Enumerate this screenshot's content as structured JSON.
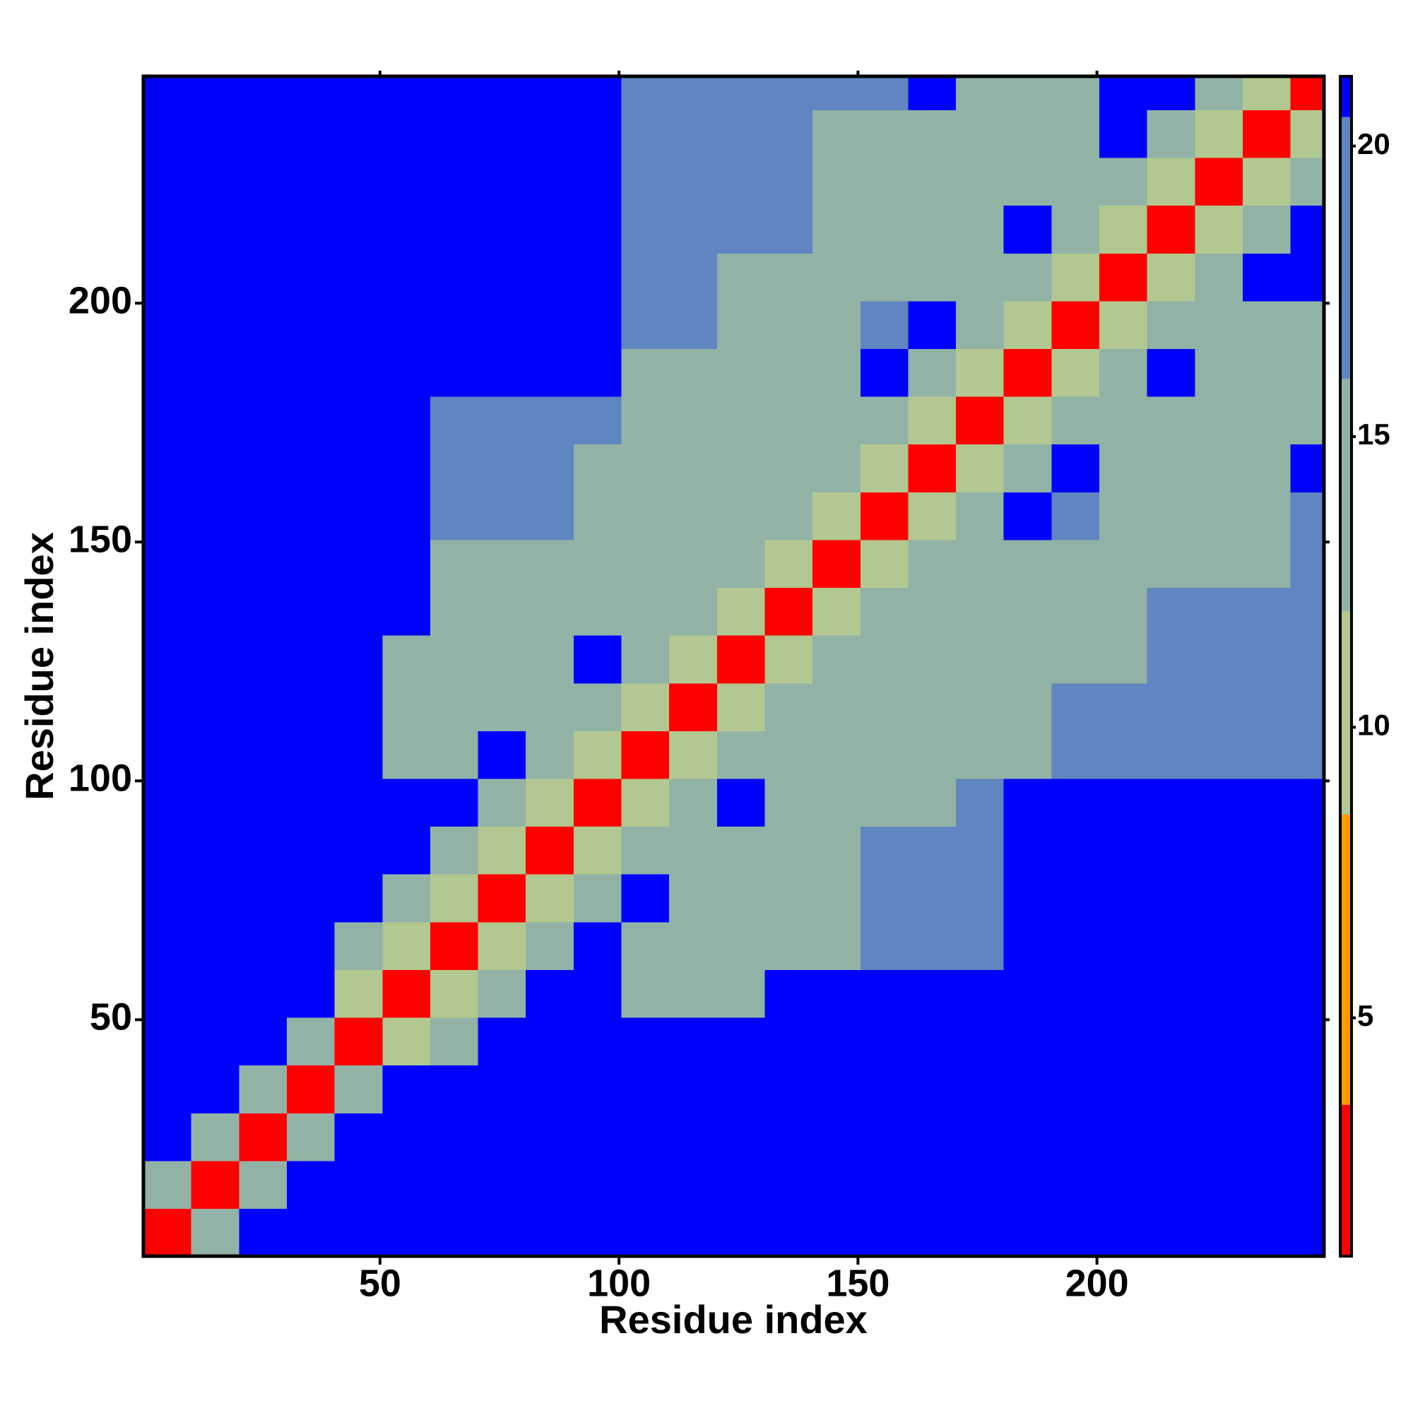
{
  "chart_data": {
    "type": "heatmap",
    "x_label": "Residue index",
    "y_label": "Residue index",
    "x_bins": [
      0.5,
      10.5,
      20.5,
      30.5,
      40.5,
      50.5,
      60.5,
      70.5,
      80.5,
      90.5,
      100.5,
      110.5,
      120.5,
      130.5,
      140.5,
      150.5,
      160.5,
      170.5,
      180.5,
      190.5,
      200.5,
      210.5,
      220.5,
      230.5,
      240.5,
      247.5
    ],
    "y_bins": [
      0.5,
      10.5,
      20.5,
      30.5,
      40.5,
      50.5,
      60.5,
      70.5,
      80.5,
      90.5,
      100.5,
      110.5,
      120.5,
      130.5,
      140.5,
      150.5,
      160.5,
      170.5,
      180.5,
      190.5,
      200.5,
      210.5,
      220.5,
      230.5,
      240.5,
      247.5
    ],
    "z": [
      [
        3,
        15,
        21,
        21,
        21,
        21,
        21,
        21,
        21,
        21,
        21,
        21,
        21,
        21,
        21,
        21,
        21,
        21,
        21,
        21,
        21,
        21,
        21,
        21,
        21
      ],
      [
        15,
        3,
        15,
        21,
        21,
        21,
        21,
        21,
        21,
        21,
        21,
        21,
        21,
        21,
        21,
        21,
        21,
        21,
        21,
        21,
        21,
        21,
        21,
        21,
        21
      ],
      [
        21,
        15,
        3,
        15,
        21,
        21,
        21,
        21,
        21,
        21,
        21,
        21,
        21,
        21,
        21,
        21,
        21,
        21,
        21,
        21,
        21,
        21,
        21,
        21,
        21
      ],
      [
        21,
        21,
        15,
        3,
        15,
        21,
        21,
        21,
        21,
        21,
        21,
        21,
        21,
        21,
        21,
        21,
        21,
        21,
        21,
        21,
        21,
        21,
        21,
        21,
        21
      ],
      [
        21,
        21,
        21,
        15,
        3,
        11,
        14,
        21,
        21,
        21,
        21,
        21,
        21,
        21,
        21,
        21,
        21,
        21,
        21,
        21,
        21,
        21,
        21,
        21,
        21
      ],
      [
        21,
        21,
        21,
        21,
        11,
        3,
        11,
        14,
        21,
        21,
        13,
        13,
        13,
        21,
        21,
        21,
        21,
        21,
        21,
        21,
        21,
        21,
        21,
        21,
        21
      ],
      [
        21,
        21,
        21,
        21,
        14,
        11,
        3,
        11,
        14,
        21,
        13,
        13,
        13,
        13,
        13,
        18,
        18,
        18,
        21,
        21,
        21,
        21,
        21,
        21,
        21
      ],
      [
        21,
        21,
        21,
        21,
        21,
        14,
        11,
        3,
        11,
        14,
        21,
        13,
        13,
        13,
        13,
        18,
        18,
        18,
        21,
        21,
        21,
        21,
        21,
        21,
        21
      ],
      [
        21,
        21,
        21,
        21,
        21,
        21,
        14,
        11,
        3,
        11,
        14,
        13,
        13,
        13,
        13,
        18,
        18,
        18,
        21,
        21,
        21,
        21,
        21,
        21,
        21
      ],
      [
        21,
        21,
        21,
        21,
        21,
        21,
        21,
        14,
        11,
        3,
        11,
        14,
        21,
        14,
        14,
        14,
        14,
        18,
        21,
        21,
        21,
        21,
        21,
        21,
        21
      ],
      [
        21,
        21,
        21,
        21,
        21,
        13,
        13,
        21,
        14,
        11,
        3,
        11,
        14,
        14,
        14,
        14,
        14,
        14,
        14,
        18,
        18,
        18,
        18,
        18,
        18
      ],
      [
        21,
        21,
        21,
        21,
        21,
        13,
        13,
        13,
        13,
        14,
        11,
        3,
        11,
        14,
        14,
        14,
        14,
        14,
        14,
        18,
        18,
        18,
        18,
        18,
        18
      ],
      [
        21,
        21,
        21,
        21,
        21,
        13,
        13,
        13,
        13,
        21,
        14,
        11,
        3,
        11,
        14,
        14,
        14,
        14,
        14,
        14,
        14,
        18,
        18,
        18,
        18
      ],
      [
        21,
        21,
        21,
        21,
        21,
        21,
        13,
        13,
        13,
        14,
        14,
        14,
        11,
        3,
        11,
        14,
        14,
        14,
        14,
        14,
        14,
        18,
        18,
        18,
        18
      ],
      [
        21,
        21,
        21,
        21,
        21,
        21,
        13,
        13,
        13,
        14,
        14,
        14,
        14,
        11,
        3,
        11,
        14,
        14,
        14,
        14,
        13,
        13,
        13,
        13,
        18
      ],
      [
        21,
        21,
        21,
        21,
        21,
        21,
        18,
        18,
        18,
        14,
        14,
        14,
        14,
        14,
        11,
        3,
        11,
        14,
        21,
        18,
        13,
        13,
        13,
        13,
        18
      ],
      [
        21,
        21,
        21,
        21,
        21,
        21,
        18,
        18,
        18,
        14,
        14,
        14,
        14,
        14,
        14,
        11,
        3,
        11,
        14,
        21,
        13,
        13,
        13,
        13,
        21
      ],
      [
        21,
        21,
        21,
        21,
        21,
        21,
        18,
        18,
        18,
        18,
        14,
        14,
        14,
        14,
        14,
        14,
        11,
        3,
        11,
        14,
        13,
        13,
        13,
        13,
        13
      ],
      [
        21,
        21,
        21,
        21,
        21,
        21,
        21,
        21,
        21,
        21,
        14,
        14,
        14,
        14,
        14,
        21,
        14,
        11,
        3,
        11,
        14,
        21,
        13,
        13,
        13
      ],
      [
        21,
        21,
        21,
        21,
        21,
        21,
        21,
        21,
        21,
        21,
        18,
        18,
        14,
        14,
        14,
        18,
        21,
        14,
        11,
        3,
        11,
        14,
        13,
        13,
        13
      ],
      [
        21,
        21,
        21,
        21,
        21,
        21,
        21,
        21,
        21,
        21,
        18,
        18,
        14,
        14,
        13,
        13,
        13,
        13,
        14,
        11,
        3,
        11,
        14,
        21,
        21
      ],
      [
        21,
        21,
        21,
        21,
        21,
        21,
        21,
        21,
        21,
        21,
        18,
        18,
        18,
        18,
        13,
        13,
        13,
        13,
        21,
        14,
        11,
        3,
        11,
        14,
        21
      ],
      [
        21,
        21,
        21,
        21,
        21,
        21,
        21,
        21,
        21,
        21,
        18,
        18,
        18,
        18,
        13,
        13,
        13,
        13,
        13,
        13,
        14,
        11,
        3,
        11,
        14
      ],
      [
        21,
        21,
        21,
        21,
        21,
        21,
        21,
        21,
        21,
        21,
        18,
        18,
        18,
        18,
        13,
        13,
        13,
        13,
        13,
        13,
        21,
        14,
        11,
        3,
        11
      ],
      [
        21,
        21,
        21,
        21,
        21,
        21,
        21,
        21,
        21,
        21,
        18,
        18,
        18,
        18,
        18,
        18,
        21,
        13,
        13,
        13,
        21,
        21,
        14,
        11,
        3
      ]
    ],
    "xlim": [
      0.5,
      247.5
    ],
    "ylim": [
      0.5,
      247.5
    ],
    "xticks": [
      50,
      100,
      150,
      200
    ],
    "yticks": [
      50,
      100,
      150,
      200
    ],
    "colorbar": {
      "zlim": [
        0.9,
        21.2
      ],
      "zticks": [
        5,
        10,
        15,
        20
      ],
      "bands": [
        {
          "from": 0.9,
          "to": 3.5,
          "color": "#ff0000"
        },
        {
          "from": 3.5,
          "to": 8.5,
          "color": "#ff9900"
        },
        {
          "from": 8.5,
          "to": 12,
          "color": "#b2c890"
        },
        {
          "from": 12,
          "to": 16,
          "color": "#93b2a6"
        },
        {
          "from": 16,
          "to": 20.5,
          "color": "#5f86c0"
        },
        {
          "from": 20.5,
          "to": 21.2,
          "color": "#0000ff"
        }
      ]
    }
  }
}
